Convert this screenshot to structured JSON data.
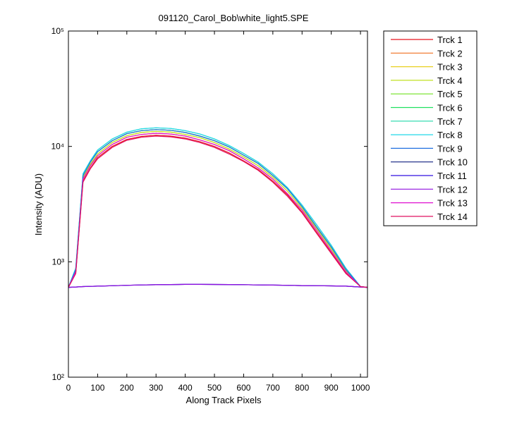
{
  "chart_data": {
    "type": "line",
    "title": "091120_Carol_Bob\\white_light5.SPE",
    "x_label": "Along Track Pixels",
    "y_label": "Intensity (ADU)",
    "log_y": true,
    "x": [
      0,
      25,
      50,
      75,
      100,
      150,
      200,
      250,
      300,
      350,
      400,
      450,
      500,
      550,
      600,
      650,
      700,
      750,
      800,
      850,
      900,
      950,
      1000,
      1024
    ],
    "xlim": [
      0,
      1024
    ],
    "xticks": [
      0,
      100,
      200,
      300,
      400,
      500,
      600,
      700,
      800,
      900,
      1000
    ],
    "ylim": [
      100,
      100000
    ],
    "yticks": [
      {
        "value": 100,
        "label": "10²"
      },
      {
        "value": 1000,
        "label": "10³"
      },
      {
        "value": 10000,
        "label": "10⁴"
      },
      {
        "value": 100000,
        "label": "10⁵"
      }
    ],
    "legend": "outside-right",
    "series": [
      {
        "name": "Trck 1",
        "color": "#e8141e",
        "values": [
          600,
          800,
          5000,
          6500,
          8000,
          10000,
          11500,
          12200,
          12500,
          12300,
          11800,
          11000,
          10000,
          8800,
          7500,
          6300,
          5000,
          3800,
          2700,
          1800,
          1200,
          800,
          610,
          600
        ]
      },
      {
        "name": "Trck 2",
        "color": "#f07020",
        "values": [
          600,
          820,
          5200,
          6800,
          8300,
          10400,
          12000,
          12700,
          13000,
          12800,
          12300,
          11400,
          10400,
          9200,
          7800,
          6500,
          5200,
          3900,
          2800,
          1870,
          1240,
          820,
          610,
          600
        ]
      },
      {
        "name": "Trck 3",
        "color": "#e8d020",
        "values": [
          600,
          840,
          5400,
          7000,
          8600,
          10800,
          12400,
          13200,
          13500,
          13300,
          12700,
          11900,
          10800,
          9500,
          8100,
          6800,
          5400,
          4100,
          2900,
          1940,
          1290,
          840,
          610,
          600
        ]
      },
      {
        "name": "Trck 4",
        "color": "#c0e020",
        "values": [
          600,
          840,
          5400,
          7000,
          8600,
          10800,
          12400,
          13200,
          13500,
          13300,
          12700,
          11900,
          10800,
          9500,
          8100,
          6800,
          5400,
          4100,
          2900,
          1940,
          1290,
          840,
          610,
          600
        ]
      },
      {
        "name": "Trck 5",
        "color": "#70e020",
        "values": [
          600,
          860,
          5600,
          7300,
          9000,
          11200,
          12900,
          13700,
          14000,
          13800,
          13200,
          12300,
          11200,
          9900,
          8400,
          7100,
          5600,
          4300,
          3000,
          2000,
          1340,
          860,
          610,
          600
        ]
      },
      {
        "name": "Trck 6",
        "color": "#20e060",
        "values": [
          600,
          860,
          5600,
          7300,
          9000,
          11200,
          12900,
          13700,
          14000,
          13800,
          13200,
          12300,
          11200,
          9900,
          8400,
          7100,
          5600,
          4300,
          3000,
          2000,
          1340,
          860,
          610,
          600
        ]
      },
      {
        "name": "Trck 7",
        "color": "#20d8a8",
        "values": [
          600,
          880,
          5800,
          7500,
          9300,
          11600,
          13300,
          14200,
          14500,
          14300,
          13700,
          12800,
          11600,
          10200,
          8700,
          7300,
          5800,
          4400,
          3100,
          2090,
          1390,
          880,
          610,
          600
        ]
      },
      {
        "name": "Trck 8",
        "color": "#20d8e8",
        "values": [
          600,
          880,
          5800,
          7500,
          9300,
          11600,
          13300,
          14200,
          14500,
          14300,
          13700,
          12800,
          11600,
          10200,
          8700,
          7300,
          5800,
          4400,
          3100,
          2090,
          1390,
          880,
          610,
          600
        ]
      },
      {
        "name": "Trck 9",
        "color": "#2070e0",
        "values": [
          600,
          860,
          5600,
          7300,
          9000,
          11200,
          12900,
          13700,
          14000,
          13800,
          13200,
          12300,
          11200,
          9900,
          8400,
          7100,
          5600,
          4300,
          3000,
          2000,
          1340,
          860,
          610,
          600
        ]
      },
      {
        "name": "Trck 10",
        "color": "#102080",
        "values": [
          600,
          605,
          610,
          612,
          615,
          620,
          625,
          630,
          632,
          635,
          637,
          637,
          636,
          635,
          633,
          630,
          628,
          625,
          622,
          620,
          618,
          615,
          605,
          600
        ]
      },
      {
        "name": "Trck 11",
        "color": "#3010e0",
        "values": [
          600,
          605,
          610,
          612,
          615,
          620,
          625,
          630,
          632,
          635,
          637,
          637,
          636,
          635,
          633,
          630,
          628,
          625,
          622,
          620,
          618,
          615,
          605,
          600
        ]
      },
      {
        "name": "Trck 12",
        "color": "#9010e0",
        "values": [
          600,
          605,
          610,
          612,
          615,
          620,
          625,
          630,
          632,
          635,
          637,
          637,
          636,
          635,
          633,
          630,
          628,
          625,
          622,
          620,
          618,
          615,
          605,
          600
        ]
      },
      {
        "name": "Trck 13",
        "color": "#e010d0",
        "values": [
          600,
          820,
          5200,
          6800,
          8300,
          10400,
          12000,
          12700,
          13000,
          12800,
          12300,
          11400,
          10400,
          9200,
          7800,
          6500,
          5200,
          3900,
          2800,
          1870,
          1240,
          820,
          610,
          600
        ]
      },
      {
        "name": "Trck 14",
        "color": "#e01060",
        "values": [
          600,
          790,
          4900,
          6400,
          7800,
          9800,
          11300,
          12000,
          12300,
          12100,
          11600,
          10800,
          9800,
          8600,
          7400,
          6200,
          4900,
          3700,
          2650,
          1760,
          1180,
          790,
          610,
          600
        ]
      }
    ]
  }
}
